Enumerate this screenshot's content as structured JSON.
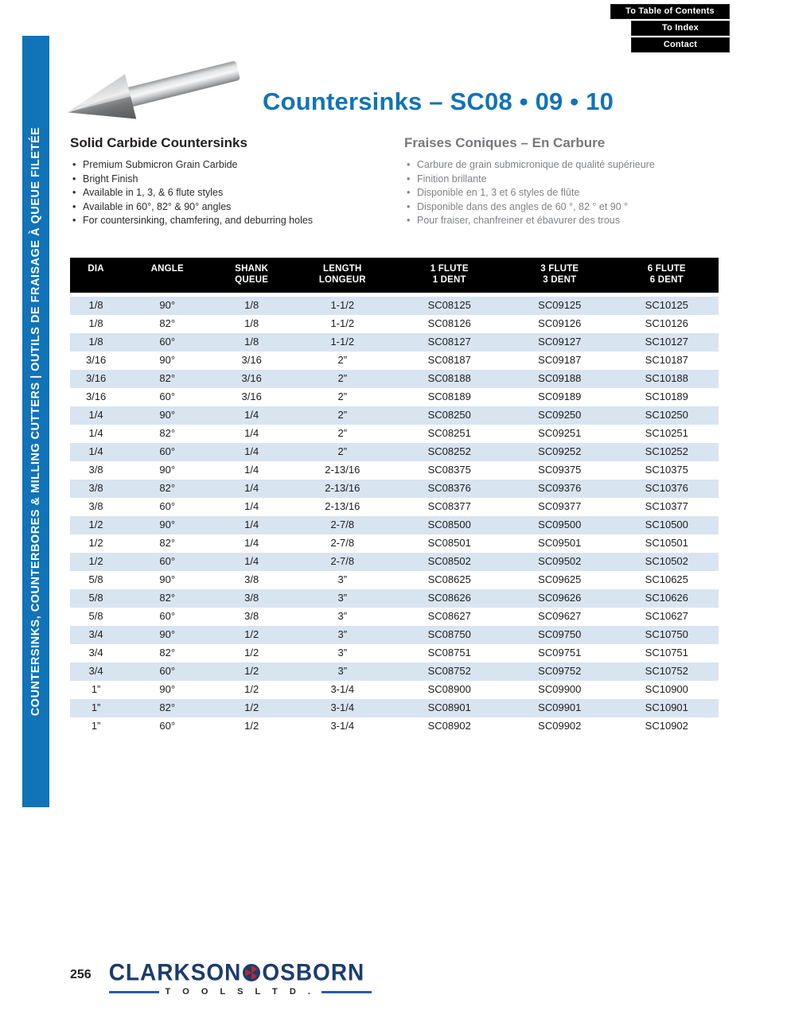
{
  "nav": {
    "buttons": [
      "To Table of Contents",
      "To Index",
      "Contact"
    ]
  },
  "sidebar": {
    "label": "COUNTERSINKS, COUNTERBORES & MILLING CUTTERS  |  OUTILS DE FRAISAGE À QUEUE FILETÉE"
  },
  "header": {
    "title": "Countersinks – SC08 • 09 • 10"
  },
  "intro_en": {
    "heading": "Solid Carbide Countersinks",
    "bullets": [
      "Premium Submicron Grain Carbide",
      "Bright Finish",
      "Available in 1, 3, & 6 flute styles",
      "Available in 60°, 82° & 90° angles",
      "For countersinking, chamfering, and deburring holes"
    ]
  },
  "intro_fr": {
    "heading": "Fraises Coniques – En Carbure",
    "bullets": [
      "Carbure de grain submicronique de qualité supérieure",
      "Finition brillante",
      "Disponible en 1, 3 et 6 styles de flûte",
      "Disponible dans des angles de 60 °, 82 ° et 90 °",
      "Pour fraiser, chanfreiner et ébavurer des trous"
    ]
  },
  "table": {
    "headers": [
      [
        "DIA",
        ""
      ],
      [
        "ANGLE",
        ""
      ],
      [
        "SHANK",
        "QUEUE"
      ],
      [
        "LENGTH",
        "LONGEUR"
      ],
      [
        "1 FLUTE",
        "1 DENT"
      ],
      [
        "3 FLUTE",
        "3 DENT"
      ],
      [
        "6 FLUTE",
        "6 DENT"
      ]
    ],
    "rows": [
      [
        "1/8",
        "90°",
        "1/8",
        "1-1/2",
        "SC08125",
        "SC09125",
        "SC10125"
      ],
      [
        "1/8",
        "82°",
        "1/8",
        "1-1/2",
        "SC08126",
        "SC09126",
        "SC10126"
      ],
      [
        "1/8",
        "60°",
        "1/8",
        "1-1/2",
        "SC08127",
        "SC09127",
        "SC10127"
      ],
      [
        "3/16",
        "90°",
        "3/16",
        "2”",
        "SC08187",
        "SC09187",
        "SC10187"
      ],
      [
        "3/16",
        "82°",
        "3/16",
        "2”",
        "SC08188",
        "SC09188",
        "SC10188"
      ],
      [
        "3/16",
        "60°",
        "3/16",
        "2”",
        "SC08189",
        "SC09189",
        "SC10189"
      ],
      [
        "1/4",
        "90°",
        "1/4",
        "2”",
        "SC08250",
        "SC09250",
        "SC10250"
      ],
      [
        "1/4",
        "82°",
        "1/4",
        "2”",
        "SC08251",
        "SC09251",
        "SC10251"
      ],
      [
        "1/4",
        "60°",
        "1/4",
        "2”",
        "SC08252",
        "SC09252",
        "SC10252"
      ],
      [
        "3/8",
        "90°",
        "1/4",
        "2-13/16",
        "SC08375",
        "SC09375",
        "SC10375"
      ],
      [
        "3/8",
        "82°",
        "1/4",
        "2-13/16",
        "SC08376",
        "SC09376",
        "SC10376"
      ],
      [
        "3/8",
        "60°",
        "1/4",
        "2-13/16",
        "SC08377",
        "SC09377",
        "SC10377"
      ],
      [
        "1/2",
        "90°",
        "1/4",
        "2-7/8",
        "SC08500",
        "SC09500",
        "SC10500"
      ],
      [
        "1/2",
        "82°",
        "1/4",
        "2-7/8",
        "SC08501",
        "SC09501",
        "SC10501"
      ],
      [
        "1/2",
        "60°",
        "1/4",
        "2-7/8",
        "SC08502",
        "SC09502",
        "SC10502"
      ],
      [
        "5/8",
        "90°",
        "3/8",
        "3”",
        "SC08625",
        "SC09625",
        "SC10625"
      ],
      [
        "5/8",
        "82°",
        "3/8",
        "3”",
        "SC08626",
        "SC09626",
        "SC10626"
      ],
      [
        "5/8",
        "60°",
        "3/8",
        "3”",
        "SC08627",
        "SC09627",
        "SC10627"
      ],
      [
        "3/4",
        "90°",
        "1/2",
        "3”",
        "SC08750",
        "SC09750",
        "SC10750"
      ],
      [
        "3/4",
        "82°",
        "1/2",
        "3”",
        "SC08751",
        "SC09751",
        "SC10751"
      ],
      [
        "3/4",
        "60°",
        "1/2",
        "3”",
        "SC08752",
        "SC09752",
        "SC10752"
      ],
      [
        "1”",
        "90°",
        "1/2",
        "3-1/4",
        "SC08900",
        "SC09900",
        "SC10900"
      ],
      [
        "1”",
        "82°",
        "1/2",
        "3-1/4",
        "SC08901",
        "SC09901",
        "SC10901"
      ],
      [
        "1”",
        "60°",
        "1/2",
        "3-1/4",
        "SC08902",
        "SC09902",
        "SC10902"
      ]
    ]
  },
  "footer": {
    "page_number": "256",
    "brand_left": "CLARKSON",
    "brand_right": "OSBORN",
    "brand_sub": "T O O L S    L T D ."
  },
  "colors": {
    "accent_blue": "#1173b8",
    "row_alt_blue": "#d9e4f1",
    "nav_black": "#000000",
    "french_gray": "#77787b",
    "logo_navy": "#1c3c6e",
    "logo_red": "#c0272d"
  }
}
